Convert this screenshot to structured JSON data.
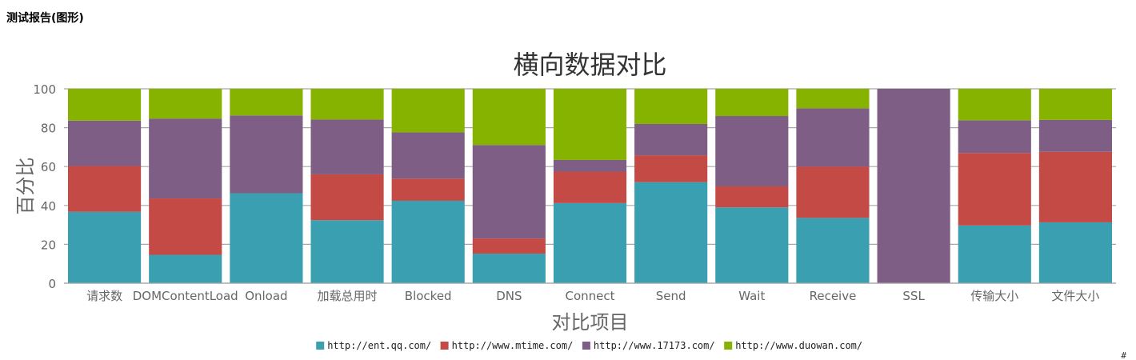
{
  "page": {
    "report_title": "测试报告(图形)",
    "footer_link": "#"
  },
  "chart_data": {
    "type": "bar",
    "stacked": true,
    "title": "横向数据对比",
    "xlabel": "对比项目",
    "ylabel": "百分比",
    "ylim": [
      0,
      100
    ],
    "yticks": [
      0,
      20,
      40,
      60,
      80,
      100
    ],
    "grid": true,
    "legend": "bottom",
    "categories": [
      "请求数",
      "DOMContentLoad",
      "Onload",
      "加载总用时",
      "Blocked",
      "DNS",
      "Connect",
      "Send",
      "Wait",
      "Receive",
      "SSL",
      "传输大小",
      "文件大小"
    ],
    "series": [
      {
        "name": "http://ent.qq.com/",
        "color": "#3a9fb1",
        "values": [
          36.7,
          14.6,
          46.3,
          32.4,
          42.4,
          15.2,
          41.2,
          52.0,
          39.0,
          33.6,
          0,
          29.7,
          31.3
        ]
      },
      {
        "name": "http://www.mtime.com/",
        "color": "#c44a45",
        "values": [
          23.6,
          29.0,
          0,
          23.6,
          11.4,
          7.8,
          16.2,
          13.8,
          10.8,
          26.4,
          0,
          37.3,
          36.3
        ]
      },
      {
        "name": "http://www.17173.com/",
        "color": "#7f5e85",
        "values": [
          23.3,
          41.1,
          40.0,
          28.2,
          23.8,
          48.1,
          6.0,
          16.1,
          36.2,
          30.0,
          100,
          16.8,
          16.4
        ]
      },
      {
        "name": "http://www.duowan.com/",
        "color": "#86b300",
        "values": [
          16.4,
          15.3,
          13.7,
          15.8,
          22.4,
          28.9,
          36.6,
          18.1,
          14.0,
          10.0,
          0,
          16.2,
          16.0
        ]
      }
    ]
  }
}
